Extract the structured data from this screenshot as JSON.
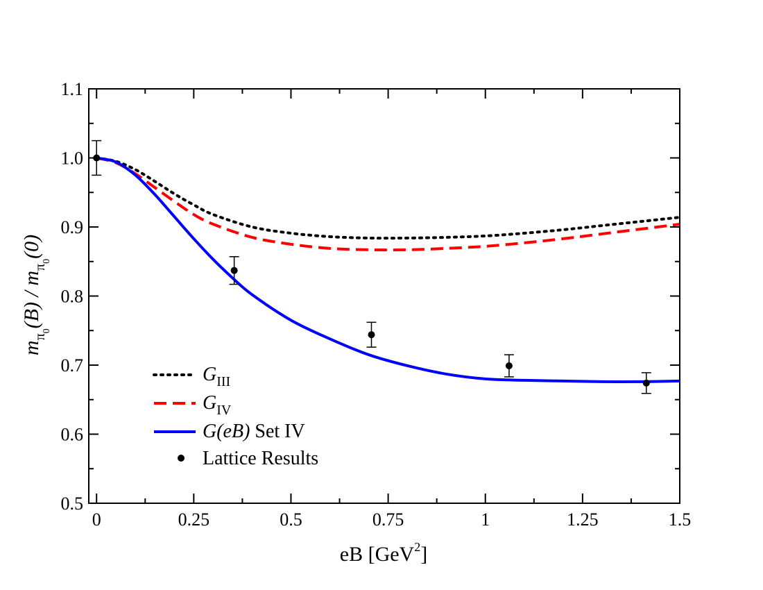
{
  "chart_data": {
    "type": "line",
    "xlabel": "eB [GeV",
    "xlabel_sup": "2",
    "xlabel_close": "]",
    "ylabel_parts": [
      "m",
      "π",
      "0",
      "(B) / m",
      "π",
      "0",
      "(0)"
    ],
    "xlim": [
      -0.02,
      1.5
    ],
    "ylim": [
      0.5,
      1.1
    ],
    "x_ticks": [
      0,
      0.25,
      0.5,
      0.75,
      1,
      1.25,
      1.5
    ],
    "x_tick_labels": [
      "0",
      "0.25",
      "0.5",
      "0.75",
      "1",
      "1.25",
      "1.5"
    ],
    "y_ticks": [
      0.5,
      0.6,
      0.7,
      0.8,
      0.9,
      1.0,
      1.1
    ],
    "y_tick_labels": [
      "0.5",
      "0.6",
      "0.7",
      "0.8",
      "0.9",
      "1.0",
      "1.1"
    ],
    "legend_location": "lower-left",
    "series": [
      {
        "name": "G_III",
        "label_main": "G",
        "label_sub": "III",
        "style": "dotted",
        "color": "#000000",
        "x": [
          0,
          0.05,
          0.1,
          0.15,
          0.2,
          0.25,
          0.3,
          0.4,
          0.5,
          0.6,
          0.7,
          0.8,
          0.9,
          1.0,
          1.1,
          1.2,
          1.3,
          1.4,
          1.5
        ],
        "y": [
          1.0,
          0.995,
          0.983,
          0.966,
          0.948,
          0.932,
          0.918,
          0.9,
          0.891,
          0.886,
          0.884,
          0.884,
          0.885,
          0.887,
          0.891,
          0.896,
          0.902,
          0.908,
          0.914
        ]
      },
      {
        "name": "G_IV",
        "label_main": "G",
        "label_sub": "IV",
        "style": "dashed",
        "color": "#ff0000",
        "x": [
          0,
          0.05,
          0.1,
          0.15,
          0.2,
          0.25,
          0.3,
          0.4,
          0.5,
          0.6,
          0.7,
          0.8,
          0.9,
          1.0,
          1.1,
          1.2,
          1.3,
          1.4,
          1.5
        ],
        "y": [
          1.0,
          0.993,
          0.977,
          0.957,
          0.937,
          0.918,
          0.904,
          0.885,
          0.875,
          0.869,
          0.867,
          0.867,
          0.869,
          0.872,
          0.877,
          0.883,
          0.89,
          0.897,
          0.904
        ]
      },
      {
        "name": "G(eB) Set IV",
        "label_main": "G(eB)",
        "label_rest": " Set IV",
        "style": "solid",
        "color": "#0000ff",
        "x": [
          0,
          0.05,
          0.1,
          0.15,
          0.2,
          0.25,
          0.3,
          0.35,
          0.4,
          0.5,
          0.6,
          0.7,
          0.8,
          0.9,
          1.0,
          1.1,
          1.2,
          1.3,
          1.4,
          1.5
        ],
        "y": [
          1.0,
          0.994,
          0.975,
          0.947,
          0.915,
          0.883,
          0.853,
          0.826,
          0.802,
          0.765,
          0.738,
          0.715,
          0.699,
          0.687,
          0.68,
          0.678,
          0.677,
          0.676,
          0.676,
          0.677
        ]
      }
    ],
    "points": {
      "name": "Lattice Results",
      "label": "Lattice Results",
      "color": "#000000",
      "x": [
        0,
        0.354,
        0.707,
        1.061,
        1.414
      ],
      "y": [
        1.0,
        0.837,
        0.744,
        0.699,
        0.674
      ],
      "err": [
        0.025,
        0.02,
        0.018,
        0.016,
        0.015
      ]
    }
  }
}
